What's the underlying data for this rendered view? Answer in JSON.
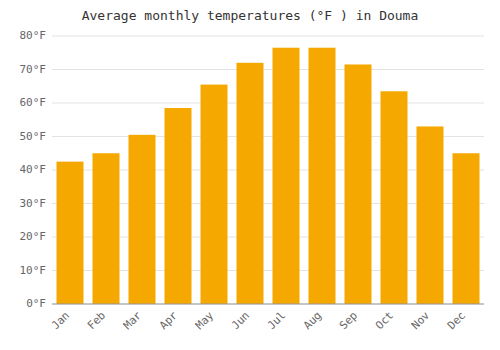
{
  "chart_data": {
    "type": "bar",
    "title": "Average monthly temperatures (°F ) in Douma",
    "categories": [
      "Jan",
      "Feb",
      "Mar",
      "Apr",
      "May",
      "Jun",
      "Jul",
      "Aug",
      "Sep",
      "Oct",
      "Nov",
      "Dec"
    ],
    "values": [
      42.5,
      45.0,
      50.5,
      58.5,
      65.5,
      72.0,
      76.5,
      76.5,
      71.5,
      63.5,
      53.0,
      45.0
    ],
    "color": "#F5A800",
    "ylim": [
      0,
      80
    ],
    "yticks": [
      {
        "value": 0,
        "label": "0°F"
      },
      {
        "value": 10,
        "label": "10°F"
      },
      {
        "value": 20,
        "label": "20°F"
      },
      {
        "value": 30,
        "label": "30°F"
      },
      {
        "value": 40,
        "label": "40°F"
      },
      {
        "value": 50,
        "label": "50°F"
      },
      {
        "value": 60,
        "label": "60°F"
      },
      {
        "value": 70,
        "label": "70°F"
      },
      {
        "value": 80,
        "label": "80°F"
      }
    ],
    "grid": true
  }
}
